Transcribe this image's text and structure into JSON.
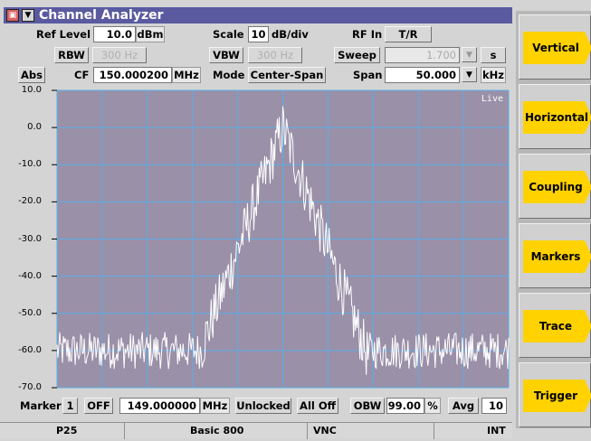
{
  "window": {
    "title": "Channel Analyzer",
    "sys_icon": "window-menu-icon",
    "dropdown_icon": "dropdown-arrow-icon"
  },
  "params": {
    "ref_level_label": "Ref Level",
    "ref_level_value": "10.0",
    "ref_level_unit": "dBm",
    "scale_label": "Scale",
    "scale_value": "10",
    "scale_unit": "dB/div",
    "rf_in_label": "RF In",
    "rf_in_value": "T/R",
    "rbw_label": "RBW",
    "rbw_value": "300 Hz",
    "vbw_label": "VBW",
    "vbw_value": "300 Hz",
    "sweep_label": "Sweep",
    "sweep_value": "1.700",
    "sweep_unit": "s",
    "abs_label": "Abs",
    "cf_label": "CF",
    "cf_value": "150.000200",
    "cf_unit": "MHz",
    "mode_label": "Mode",
    "mode_value": "Center-Span",
    "span_label": "Span",
    "span_value": "50.000",
    "span_unit": "kHz"
  },
  "plot": {
    "live_label": "Live",
    "y_ticks": [
      "10.0",
      "0.0",
      "-10.0",
      "-20.0",
      "-30.0",
      "-40.0",
      "-50.0",
      "-60.0",
      "-70.0"
    ]
  },
  "marker": {
    "label": "Marker",
    "number": "1",
    "state": "OFF",
    "freq": "149.000000",
    "freq_unit": "MHz",
    "lock": "Unlocked",
    "all_off": "All Off",
    "obw_label": "OBW",
    "obw_value": "99.00",
    "obw_unit": "%",
    "avg_label": "Avg",
    "avg_value": "10"
  },
  "status": {
    "c1": "P25",
    "c2": "Basic 800",
    "c3": "VNC",
    "c4": "INT"
  },
  "softkeys": [
    "Vertical",
    "Horizontal",
    "Coupling",
    "Markers",
    "Trace",
    "Trigger"
  ],
  "colors": {
    "title_bar": "#5a5aa0",
    "plot_bg": "#9a90a8",
    "grid": "#5aaee8",
    "trace": "#ffffff",
    "softkey": "#ffd200"
  }
}
